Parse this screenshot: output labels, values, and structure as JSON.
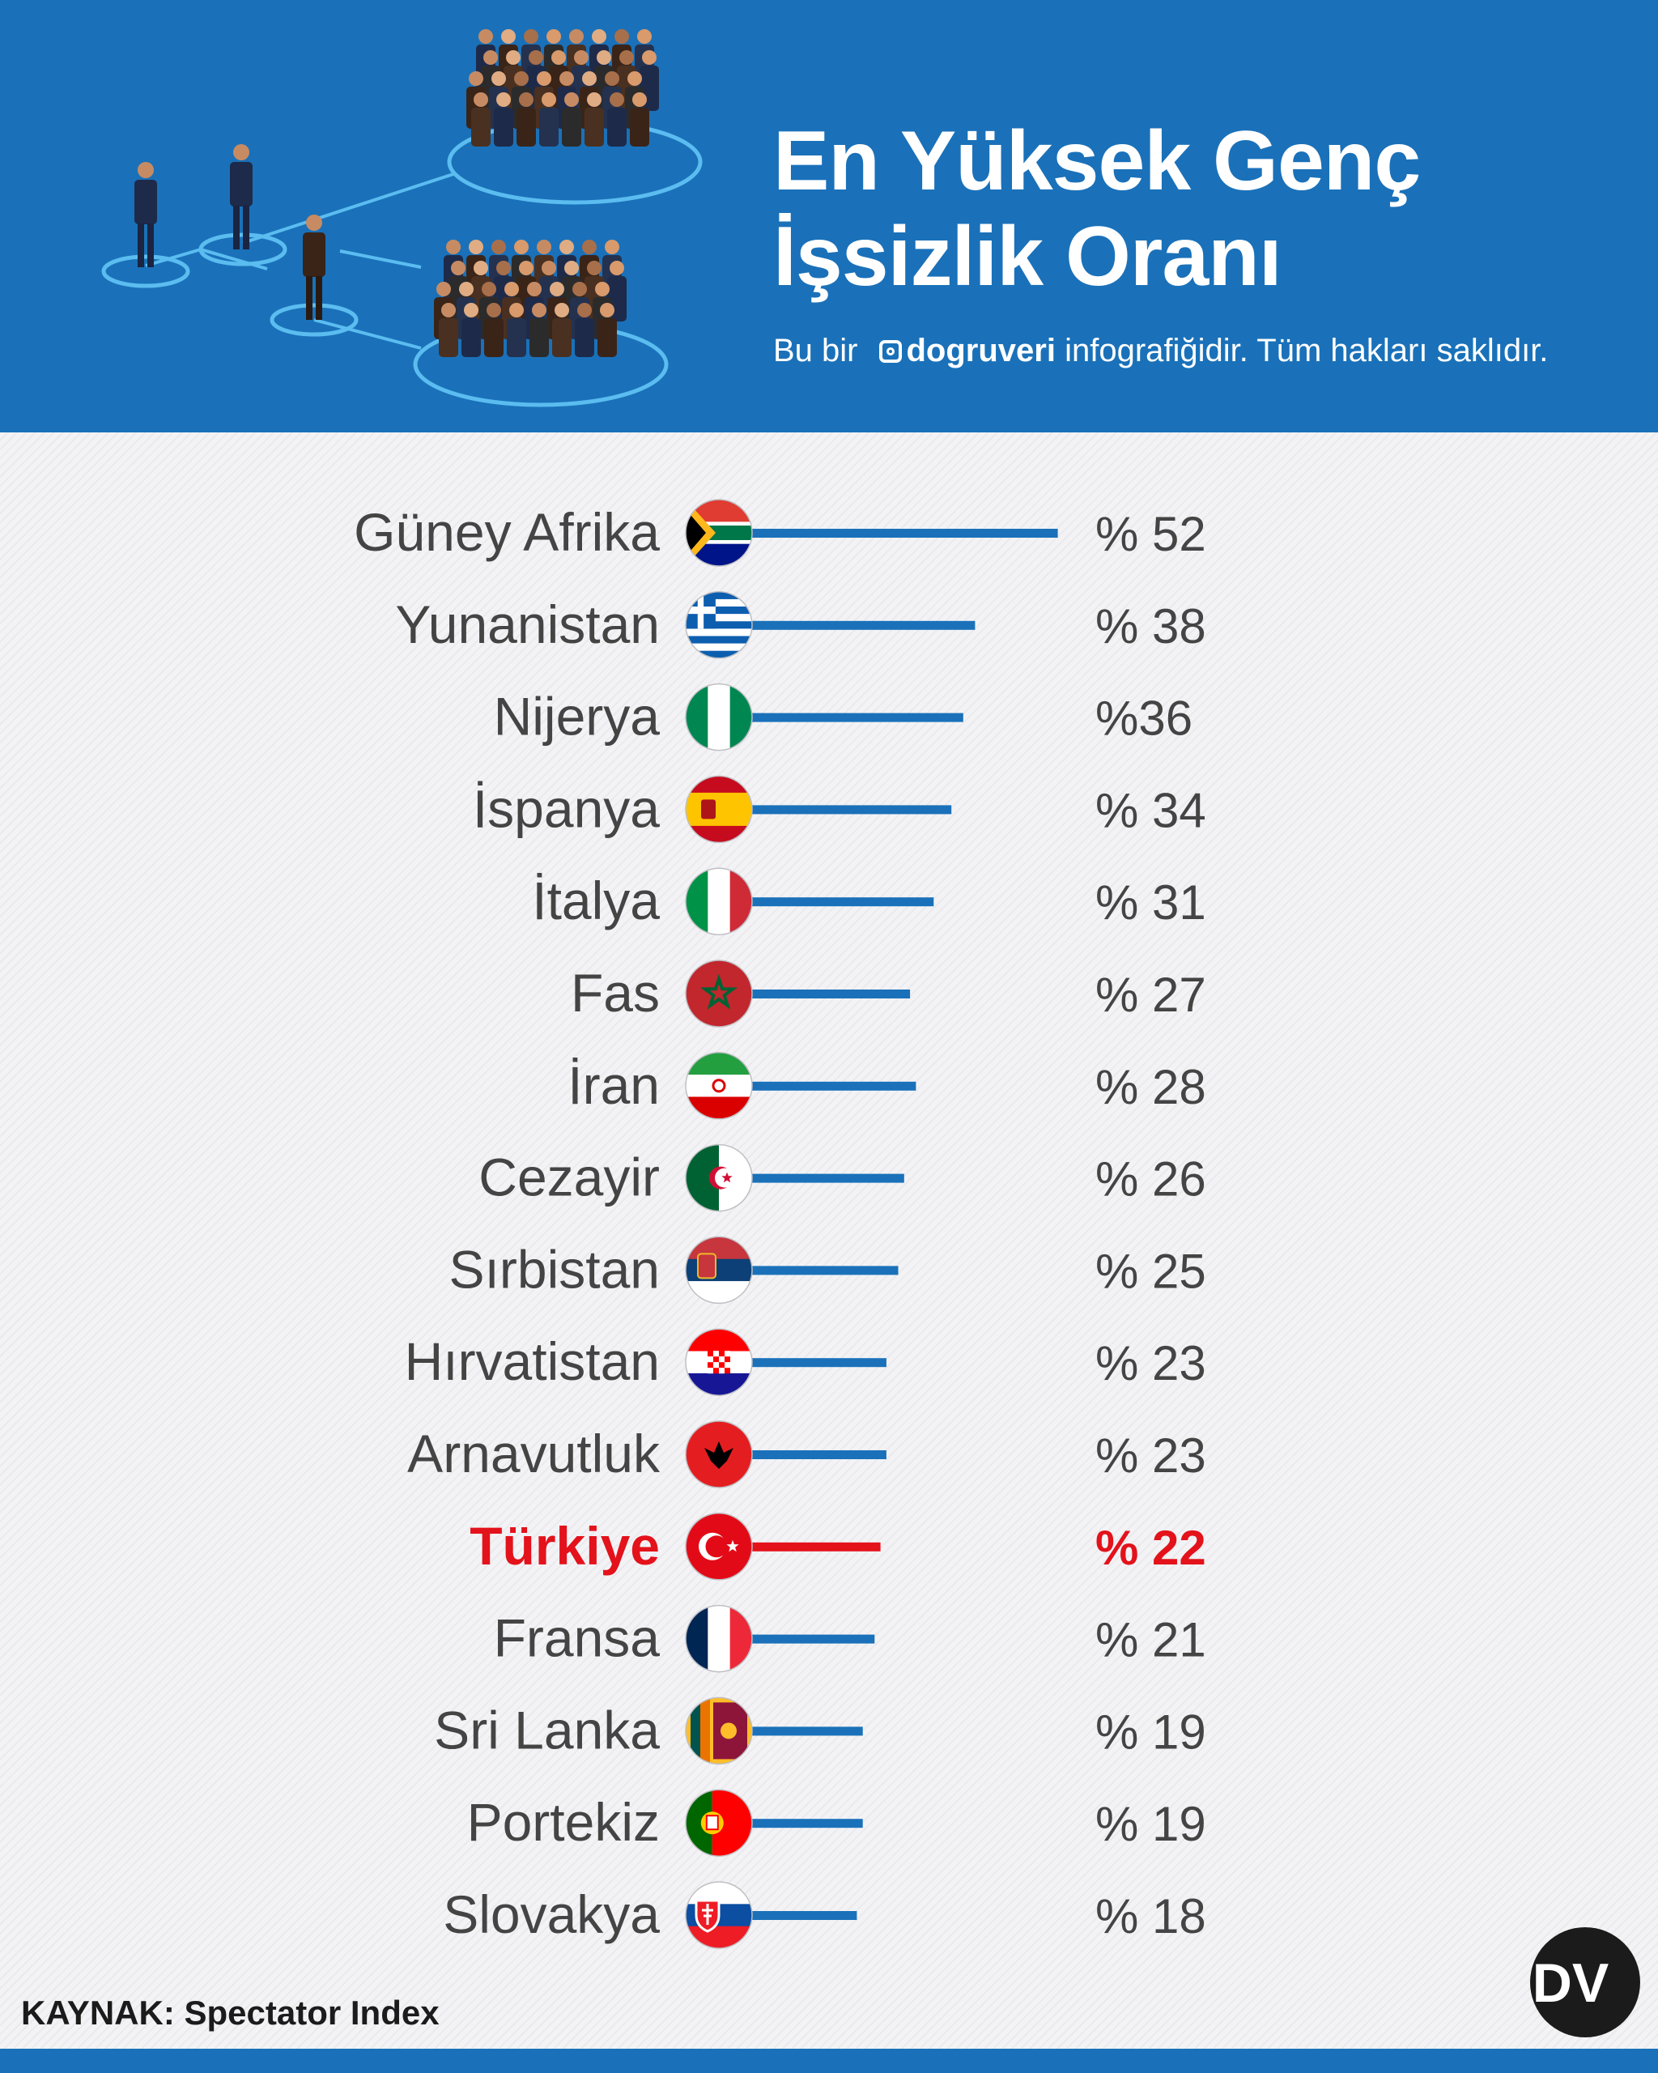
{
  "header": {
    "title_line1": "En Yüksek Genç",
    "title_line2": "İşsizlik Oranı",
    "subtitle_prefix": "Bu bir",
    "subtitle_brand": "dogruveri",
    "subtitle_suffix": "infografiğidir. Tüm hakları saklıdır."
  },
  "chart_data": {
    "type": "bar",
    "orientation": "horizontal",
    "categories": [
      "Güney Afrika",
      "Yunanistan",
      "Nijerya",
      "İspanya",
      "İtalya",
      "Fas",
      "İran",
      "Cezayir",
      "Sırbistan",
      "Hırvatistan",
      "Arnavutluk",
      "Türkiye",
      "Fransa",
      "Sri Lanka",
      "Portekiz",
      "Slovakya"
    ],
    "values": [
      52,
      38,
      36,
      34,
      31,
      27,
      28,
      26,
      25,
      23,
      23,
      22,
      21,
      19,
      19,
      18
    ],
    "value_labels": [
      "% 52",
      "% 38",
      "%36",
      "% 34",
      "% 31",
      "% 27",
      "% 28",
      "% 26",
      "% 25",
      "% 23",
      "% 23",
      "% 22",
      "% 21",
      "% 19",
      "% 19",
      "% 18"
    ],
    "highlight": "Türkiye",
    "title": "En Yüksek Genç İşsizlik Oranı",
    "xlabel": "",
    "ylabel": "",
    "grid": false,
    "legend": "none"
  },
  "colors": {
    "brand_blue": "#1a71b9",
    "highlight_red": "#e3121b",
    "label_gray": "#444444"
  },
  "flags": [
    "south-africa-flag-icon",
    "greece-flag-icon",
    "nigeria-flag-icon",
    "spain-flag-icon",
    "italy-flag-icon",
    "morocco-flag-icon",
    "iran-flag-icon",
    "algeria-flag-icon",
    "serbia-flag-icon",
    "croatia-flag-icon",
    "albania-flag-icon",
    "turkey-flag-icon",
    "france-flag-icon",
    "sri-lanka-flag-icon",
    "portugal-flag-icon",
    "slovakia-flag-icon"
  ],
  "footer": {
    "source_label": "KAYNAK:",
    "source_value": "Spectator Index",
    "logo_text": "DV"
  }
}
